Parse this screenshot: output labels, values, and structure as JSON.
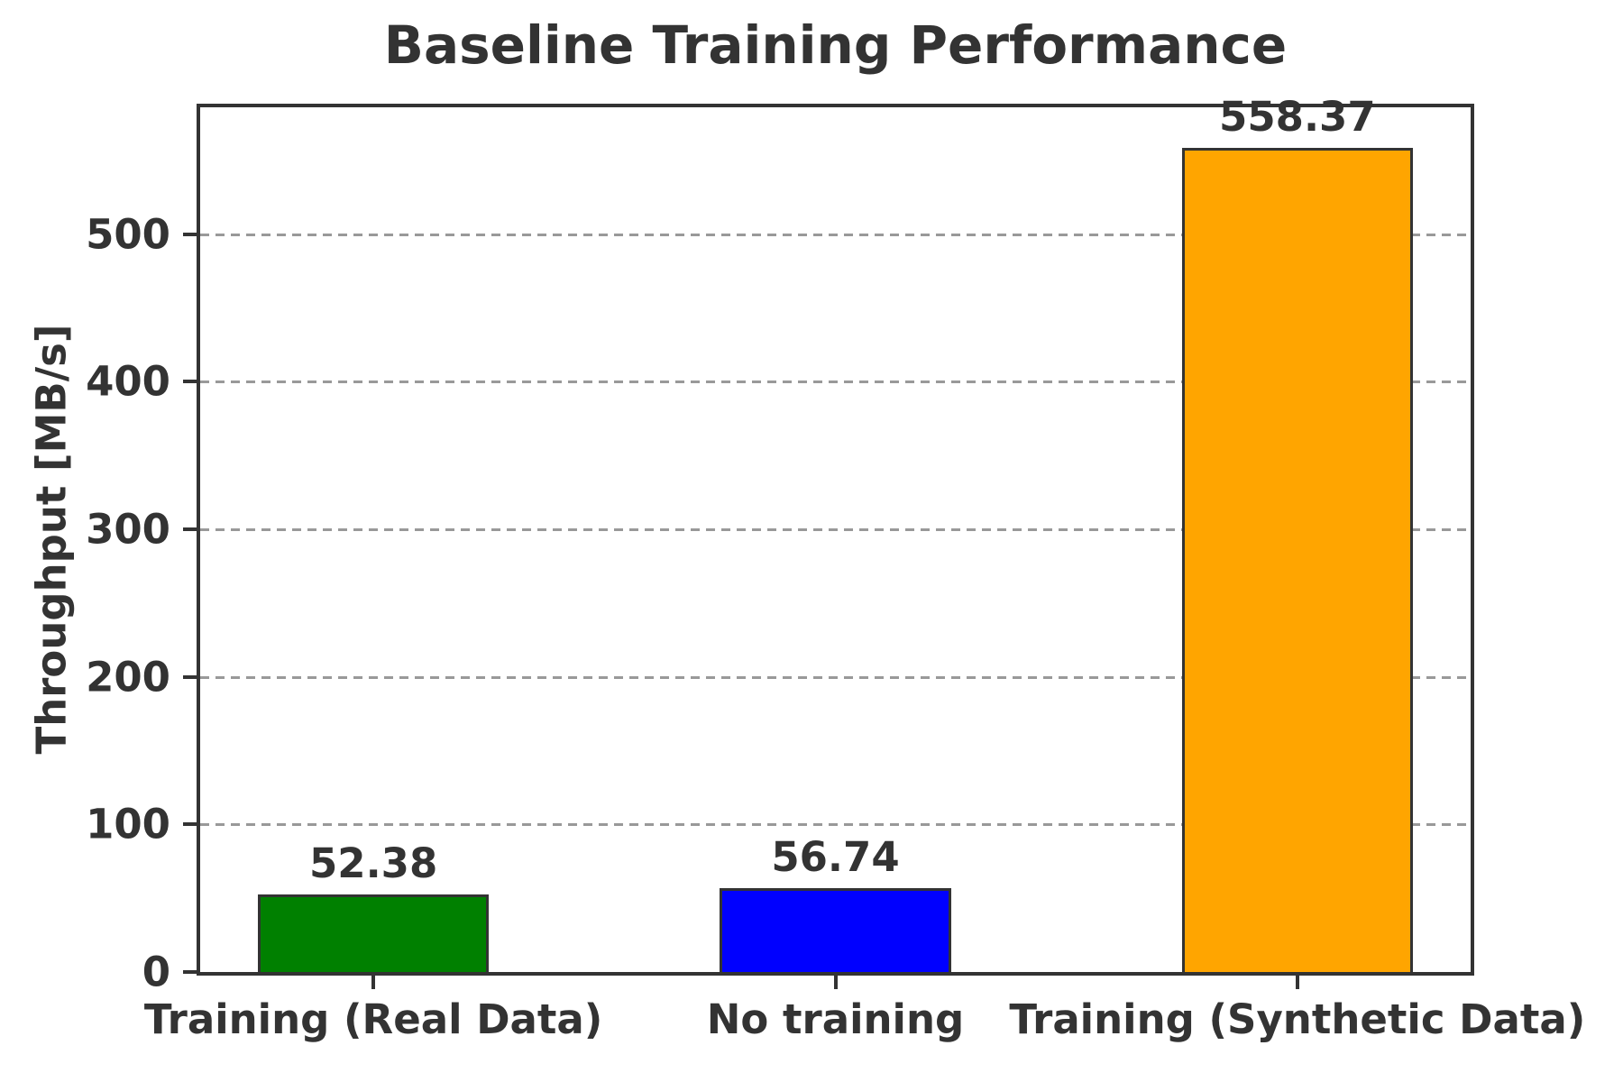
{
  "chart_data": {
    "type": "bar",
    "title": "Baseline Training Performance",
    "ylabel": "Throughput [MB/s]",
    "xlabel": "",
    "categories": [
      "Training (Real Data)",
      "No training",
      "Training (Synthetic Data)"
    ],
    "values": [
      52.38,
      56.74,
      558.37
    ],
    "value_labels": [
      "52.38",
      "56.74",
      "558.37"
    ],
    "bar_colors": [
      "#008000",
      "#0000ff",
      "#ffa500"
    ],
    "bar_names": [
      "bar-training-real-data",
      "bar-no-training",
      "bar-training-synthetic-data"
    ],
    "ylim": [
      0,
      586
    ],
    "yticks": [
      0,
      100,
      200,
      300,
      400,
      500
    ],
    "grid": "horizontal dashed gridlines at y ticks",
    "legend": "none"
  },
  "style": {
    "text_color": "#333333",
    "axis_color": "#333333",
    "grid_color": "#999999",
    "bar_edge_color": "#333333",
    "background": "#ffffff"
  }
}
